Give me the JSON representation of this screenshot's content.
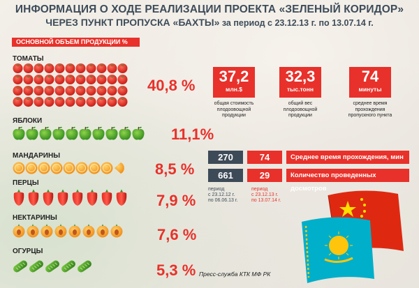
{
  "title": {
    "line1": "ИНФОРМАЦИЯ О ХОДЕ РЕАЛИЗАЦИИ ПРОЕКТА «ЗЕЛЕНЫЙ КОРИДОР»",
    "line2_bold": "ЧЕРЕЗ ПУНКТ ПРОПУСКА «БАХТЫ»",
    "line2_rest": " за период с 23.12.13 г. по 13.07.14 г."
  },
  "banner": "ОСНОВНОЙ ОБЪЕМ ПРОДУКЦИИ %",
  "categories": [
    {
      "label": "ТОМАТЫ",
      "percent": "40,8 %",
      "icon": "tomato-icon",
      "count": 33
    },
    {
      "label": "ЯБЛОКИ",
      "percent": "11,1%",
      "icon": "apple-icon",
      "count": 11
    },
    {
      "label": "МАНДАРИНЫ",
      "percent": "8,5 %",
      "icon": "mandarin-icon",
      "count": 9
    },
    {
      "label": "ПЕРЦЫ",
      "percent": "7,9 %",
      "icon": "pepper-icon",
      "count": 8
    },
    {
      "label": "НЕКТАРИНЫ",
      "percent": "7,6 %",
      "icon": "nectarine-icon",
      "count": 8
    },
    {
      "label": "ОГУРЦЫ",
      "percent": "5,3 %",
      "icon": "cucumber-icon",
      "count": 5
    }
  ],
  "stats": [
    {
      "value": "37,2",
      "unit": "млн.$",
      "desc": "общая стоимость плодоовощной продукции"
    },
    {
      "value": "32,3",
      "unit": "тыс.тонн",
      "desc": "общий вес плодоовощной продукции"
    },
    {
      "value": "74",
      "unit": "минуты",
      "desc": "среднее время прохождения пропускного пункта"
    }
  ],
  "comparison": [
    {
      "before": "270",
      "after": "74",
      "label": "Среднее время прохождения, мин"
    },
    {
      "before": "661",
      "after": "29",
      "label": "Количество проведенных досмотров"
    }
  ],
  "period_before": {
    "line1": "период",
    "line2": "с 23.12.12 г.",
    "line3": "по 06.06.13 г."
  },
  "period_after": {
    "line1": "период",
    "line2": "с 23.12.13 г.",
    "line3": "по 13.07.14 г."
  },
  "press": "Пресс-служба КТК МФ РК",
  "colors": {
    "accent": "#e8312a",
    "dark": "#3d4a58",
    "title": "#3e4c5a"
  }
}
